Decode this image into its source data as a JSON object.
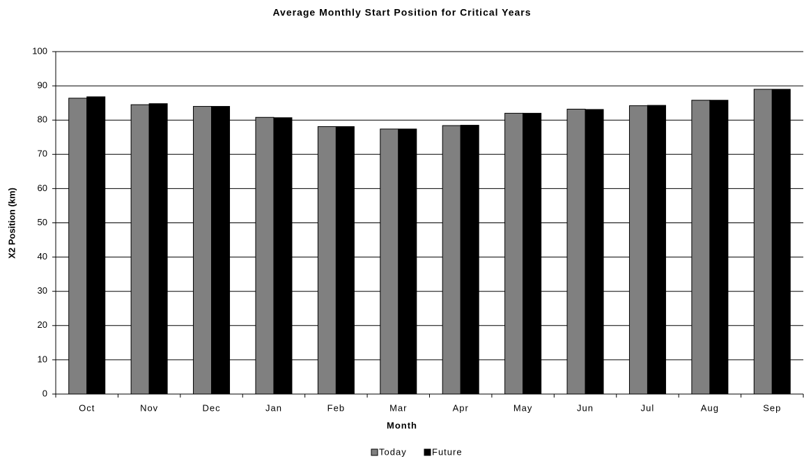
{
  "chart_data": {
    "type": "bar",
    "title": "Average Monthly Start Position for Critical Years",
    "xlabel": "Month",
    "ylabel": "X2 Position (km)",
    "categories": [
      "Oct",
      "Nov",
      "Dec",
      "Jan",
      "Feb",
      "Mar",
      "Apr",
      "May",
      "Jun",
      "Jul",
      "Aug",
      "Sep"
    ],
    "series": [
      {
        "name": "Today",
        "color": "#808080",
        "values": [
          86.4,
          84.5,
          84.0,
          80.8,
          78.1,
          77.4,
          78.4,
          82.0,
          83.2,
          84.2,
          85.8,
          89.0
        ]
      },
      {
        "name": "Future",
        "color": "#000000",
        "values": [
          86.8,
          84.8,
          84.0,
          80.7,
          78.1,
          77.4,
          78.5,
          82.0,
          83.1,
          84.3,
          85.8,
          89.0
        ]
      }
    ],
    "ylim": [
      0,
      100
    ],
    "yticks": [
      0,
      10,
      20,
      30,
      40,
      50,
      60,
      70,
      80,
      90,
      100
    ],
    "grid": true
  }
}
